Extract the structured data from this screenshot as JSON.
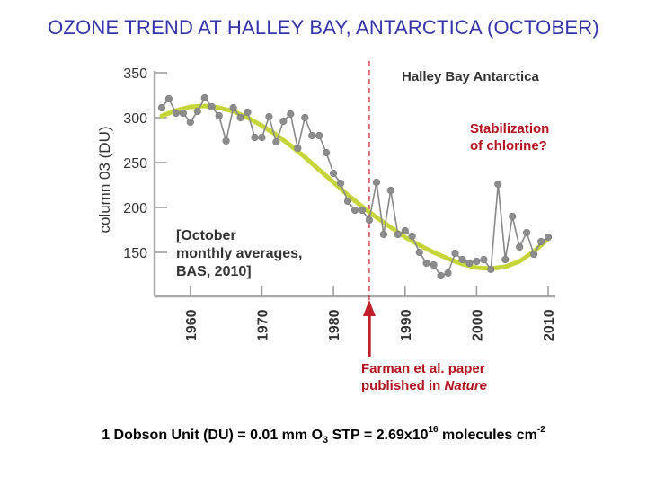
{
  "slide": {
    "title": "OZONE TREND AT HALLEY BAY, ANTARCTICA (OCTOBER)"
  },
  "annotations": {
    "stabilization_line1": "Stabilization",
    "stabilization_line2": "of chlorine?",
    "farman_line1": "Farman et al. paper",
    "farman_line2_a": "published in ",
    "farman_line2_b": "Nature"
  },
  "footer": {
    "part1": "1 Dobson Unit (DU) = 0.01 mm O",
    "o3_subscript": "3",
    "part2": " STP = 2.69x10",
    "exp": "16",
    "part3": " molecules cm",
    "exp2": "-2"
  },
  "colors": {
    "data_line": "#888888",
    "data_marker": "#8c8c8c",
    "trend_line": "#c6d63a",
    "marker_line": "#c0202a",
    "arrow": "#c0202a",
    "annotation_text": "#b3121f",
    "title_text": "#3333aa"
  },
  "chart_data": {
    "type": "line",
    "title": "Halley Bay Antarctica",
    "ylabel": "column 03 (DU)",
    "xlabel": "",
    "xlim": [
      1955,
      2011
    ],
    "ylim": [
      120,
      350
    ],
    "yticks": [
      150,
      200,
      250,
      300,
      350
    ],
    "xticks": [
      1960,
      1970,
      1980,
      1990,
      2000,
      2010
    ],
    "note_lines": [
      "[October",
      "monthly averages,",
      "BAS, 2010]"
    ],
    "marker_year": 1985,
    "series": [
      {
        "name": "October monthly averages",
        "x": [
          1956,
          1957,
          1958,
          1959,
          1960,
          1961,
          1962,
          1963,
          1964,
          1965,
          1966,
          1967,
          1968,
          1969,
          1970,
          1971,
          1972,
          1973,
          1974,
          1975,
          1976,
          1977,
          1978,
          1979,
          1980,
          1981,
          1982,
          1983,
          1984,
          1985,
          1986,
          1987,
          1988,
          1989,
          1990,
          1991,
          1992,
          1993,
          1994,
          1995,
          1996,
          1997,
          1998,
          1999,
          2000,
          2001,
          2002,
          2003,
          2004,
          2005,
          2006,
          2007,
          2008,
          2009,
          2010
        ],
        "y": [
          311,
          321,
          305,
          305,
          295,
          307,
          322,
          312,
          302,
          274,
          311,
          300,
          306,
          278,
          278,
          301,
          273,
          296,
          304,
          266,
          300,
          280,
          280,
          261,
          238,
          227,
          207,
          197,
          197,
          186,
          228,
          170,
          219,
          170,
          174,
          168,
          150,
          138,
          136,
          124,
          127,
          149,
          142,
          138,
          140,
          142,
          131,
          226,
          142,
          190,
          156,
          172,
          148,
          162,
          167
        ]
      },
      {
        "name": "trend",
        "x": [
          1956,
          1958,
          1960,
          1962,
          1964,
          1966,
          1968,
          1970,
          1972,
          1974,
          1976,
          1978,
          1980,
          1982,
          1984,
          1986,
          1988,
          1990,
          1992,
          1994,
          1996,
          1998,
          2000,
          2002,
          2004,
          2006,
          2008,
          2010
        ],
        "y": [
          302,
          308,
          312,
          313,
          311,
          307,
          300,
          291,
          281,
          269,
          256,
          242,
          228,
          214,
          201,
          189,
          178,
          167,
          158,
          150,
          143,
          137,
          133,
          132,
          134,
          140,
          151,
          165
        ]
      }
    ]
  }
}
